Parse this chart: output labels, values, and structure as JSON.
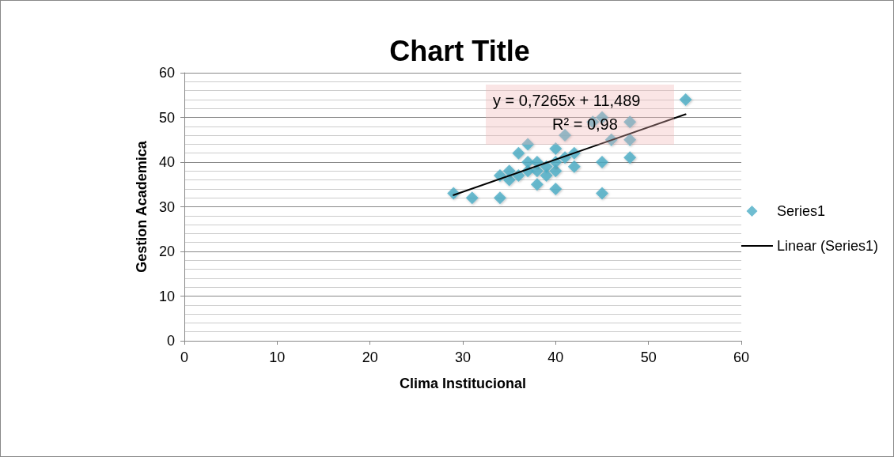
{
  "chart_data": {
    "type": "scatter",
    "title": "Chart Title",
    "xlabel": "Clima Institucional",
    "ylabel": "Gestion Academica",
    "xlim": [
      0,
      60
    ],
    "xticks": [
      0,
      10,
      20,
      30,
      40,
      50,
      60
    ],
    "ylim": [
      0,
      60
    ],
    "yticks": [
      0,
      10,
      20,
      30,
      40,
      50,
      60
    ],
    "grid": "y",
    "legend": "right",
    "marker": "diamond",
    "annotations": [
      "y = 0,7265x + 11,489",
      "R² = 0,98"
    ],
    "series": [
      {
        "name": "Series1",
        "color": "#4bacc6",
        "x": [
          29,
          31,
          34,
          34,
          35,
          35,
          36,
          36,
          37,
          37,
          37,
          38,
          38,
          38,
          39,
          39,
          40,
          40,
          40,
          40,
          41,
          41,
          42,
          42,
          44,
          45,
          45,
          45,
          46,
          48,
          48,
          48,
          54
        ],
        "values": [
          33,
          32,
          32,
          37,
          36,
          38,
          37,
          42,
          38,
          40,
          44,
          35,
          38,
          40,
          39,
          37,
          34,
          38,
          40,
          43,
          41,
          46,
          39,
          42,
          49,
          50,
          40,
          33,
          45,
          49,
          45,
          41,
          54
        ]
      },
      {
        "name": "Linear (Series1)",
        "type": "line",
        "color": "#000000",
        "marker": "none",
        "x": [
          29,
          54
        ],
        "values": [
          32.6,
          50.7
        ]
      }
    ]
  }
}
